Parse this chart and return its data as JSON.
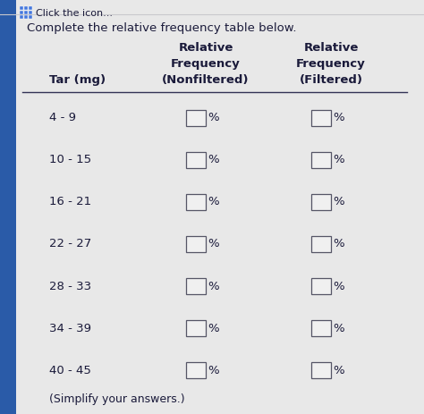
{
  "title": "Complete the relative frequency table below.",
  "header_col2_line1": "Relative",
  "header_col2_line2": "Frequency",
  "header_col2_line3": "(Nonfiltered)",
  "header_col3_line1": "Relative",
  "header_col3_line2": "Frequency",
  "header_col3_line3": "(Filtered)",
  "header_col1": "Tar (mg)",
  "rows": [
    "4 - 9",
    "10 - 15",
    "16 - 21",
    "22 - 27",
    "28 - 33",
    "34 - 39",
    "40 - 45"
  ],
  "footer": "(Simplify your answers.)",
  "bg_color": "#e8e8e8",
  "left_strip_color": "#2a5ba8",
  "box_color": "#f0f0f0",
  "box_edge_color": "#555566",
  "text_color": "#1a1a3a",
  "header_divider_color": "#333355",
  "top_bar_color": "#c8c8cc"
}
